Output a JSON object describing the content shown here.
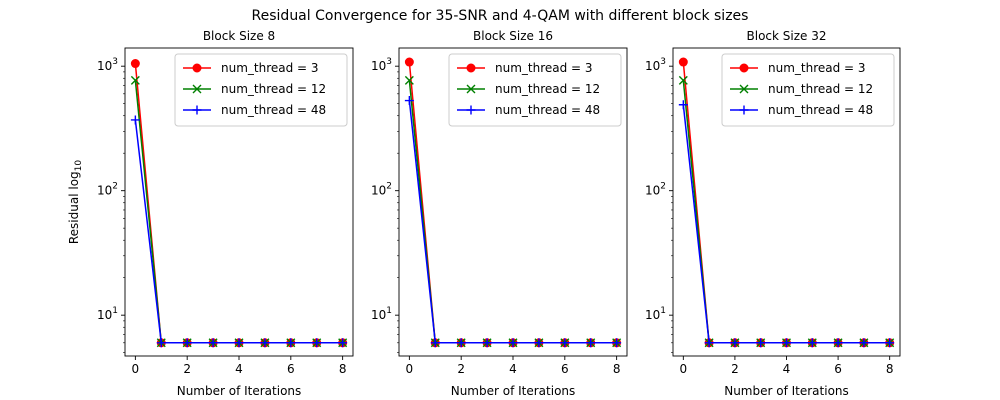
{
  "figure": {
    "suptitle": "Residual Convergence for 35-SNR and 4-QAM with different block sizes"
  },
  "chart_data": [
    {
      "type": "line",
      "title": "Block Size 8",
      "xlabel": "Number of Iterations",
      "ylabel_base": "Residual log",
      "ylabel_sub": "10",
      "yscale": "log",
      "xlim": [
        -0.4,
        8.4
      ],
      "ylim": [
        4.7,
        1400
      ],
      "xticks": [
        0,
        2,
        4,
        6,
        8
      ],
      "yticks": [
        {
          "value": 10,
          "exp": "1"
        },
        {
          "value": 100,
          "exp": "2"
        },
        {
          "value": 1000,
          "exp": "3"
        }
      ],
      "grid": false,
      "legend_position": "upper right",
      "x": [
        0,
        1,
        2,
        3,
        4,
        5,
        6,
        7,
        8
      ],
      "series": [
        {
          "name": "num_thread = 3",
          "color": "#ff0000",
          "marker": "circle",
          "values": [
            1050,
            6,
            6,
            6,
            6,
            6,
            6,
            6,
            6
          ]
        },
        {
          "name": "num_thread = 12",
          "color": "#008000",
          "marker": "x",
          "values": [
            770,
            6,
            6,
            6,
            6,
            6,
            6,
            6,
            6
          ]
        },
        {
          "name": "num_thread = 48",
          "color": "#0000ff",
          "marker": "plus",
          "values": [
            370,
            6,
            6,
            6,
            6,
            6,
            6,
            6,
            6
          ]
        }
      ]
    },
    {
      "type": "line",
      "title": "Block Size 16",
      "xlabel": "Number of Iterations",
      "ylabel_base": "",
      "ylabel_sub": "",
      "yscale": "log",
      "xlim": [
        -0.4,
        8.4
      ],
      "ylim": [
        4.7,
        1400
      ],
      "xticks": [
        0,
        2,
        4,
        6,
        8
      ],
      "yticks": [
        {
          "value": 10,
          "exp": "1"
        },
        {
          "value": 100,
          "exp": "2"
        },
        {
          "value": 1000,
          "exp": "3"
        }
      ],
      "grid": false,
      "legend_position": "upper right",
      "x": [
        0,
        1,
        2,
        3,
        4,
        5,
        6,
        7,
        8
      ],
      "series": [
        {
          "name": "num_thread = 3",
          "color": "#ff0000",
          "marker": "circle",
          "values": [
            1080,
            6,
            6,
            6,
            6,
            6,
            6,
            6,
            6
          ]
        },
        {
          "name": "num_thread = 12",
          "color": "#008000",
          "marker": "x",
          "values": [
            770,
            6,
            6,
            6,
            6,
            6,
            6,
            6,
            6
          ]
        },
        {
          "name": "num_thread = 48",
          "color": "#0000ff",
          "marker": "plus",
          "values": [
            530,
            6,
            6,
            6,
            6,
            6,
            6,
            6,
            6
          ]
        }
      ]
    },
    {
      "type": "line",
      "title": "Block Size 32",
      "xlabel": "Number of Iterations",
      "ylabel_base": "",
      "ylabel_sub": "",
      "yscale": "log",
      "xlim": [
        -0.4,
        8.4
      ],
      "ylim": [
        4.7,
        1400
      ],
      "xticks": [
        0,
        2,
        4,
        6,
        8
      ],
      "yticks": [
        {
          "value": 10,
          "exp": "1"
        },
        {
          "value": 100,
          "exp": "2"
        },
        {
          "value": 1000,
          "exp": "3"
        }
      ],
      "grid": false,
      "legend_position": "upper right",
      "x": [
        0,
        1,
        2,
        3,
        4,
        5,
        6,
        7,
        8
      ],
      "series": [
        {
          "name": "num_thread = 3",
          "color": "#ff0000",
          "marker": "circle",
          "values": [
            1080,
            6,
            6,
            6,
            6,
            6,
            6,
            6,
            6
          ]
        },
        {
          "name": "num_thread = 12",
          "color": "#008000",
          "marker": "x",
          "values": [
            770,
            6,
            6,
            6,
            6,
            6,
            6,
            6,
            6
          ]
        },
        {
          "name": "num_thread = 48",
          "color": "#0000ff",
          "marker": "plus",
          "values": [
            490,
            6,
            6,
            6,
            6,
            6,
            6,
            6,
            6
          ]
        }
      ]
    }
  ]
}
